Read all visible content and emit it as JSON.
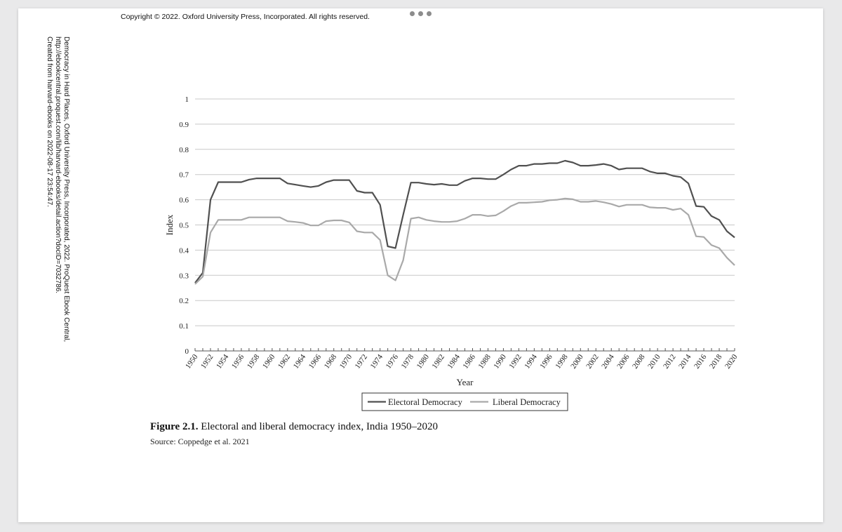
{
  "header": {
    "copyright": "Copyright © 2022. Oxford University Press, Incorporated. All rights reserved."
  },
  "sidenote": {
    "line1": "Democracy in Hard Places, Oxford University Press, Incorporated, 2022. ProQuest Ebook Central,",
    "line2": "http://ebookcentral.proquest.com/lib/harvard-ebooks/detail.action?docID=7032786.",
    "line3": "Created from harvard-ebooks on 2022-08-17 23:54:47."
  },
  "caption": {
    "figure_label": "Figure 2.1.",
    "text": "Electoral and liberal democracy index, India 1950–2020",
    "source": "Source: Coppedge et al. 2021"
  },
  "colors": {
    "electoral": "#505050",
    "liberal": "#a9a9a9",
    "grid": "#c8c8c8"
  },
  "chart_data": {
    "type": "line",
    "xlabel": "Year",
    "ylabel": "Index",
    "ylim": [
      0,
      1
    ],
    "yticks": [
      "0",
      "0.1",
      "0.2",
      "0.3",
      "0.4",
      "0.5",
      "0.6",
      "0.7",
      "0.8",
      "0.9",
      "1"
    ],
    "xtick_labels": [
      "1950",
      "1952",
      "1954",
      "1956",
      "1958",
      "1960",
      "1962",
      "1964",
      "1966",
      "1968",
      "1970",
      "1972",
      "1974",
      "1976",
      "1978",
      "1980",
      "1982",
      "1984",
      "1986",
      "1988",
      "1990",
      "1992",
      "1994",
      "1996",
      "1998",
      "2000",
      "2002",
      "2004",
      "2006",
      "2008",
      "2010",
      "2012",
      "2014",
      "2016",
      "2018",
      "2020"
    ],
    "grid": true,
    "legend_position": "bottom",
    "x": [
      1950,
      1951,
      1952,
      1953,
      1954,
      1955,
      1956,
      1957,
      1958,
      1959,
      1960,
      1961,
      1962,
      1963,
      1964,
      1965,
      1966,
      1967,
      1968,
      1969,
      1970,
      1971,
      1972,
      1973,
      1974,
      1975,
      1976,
      1977,
      1978,
      1979,
      1980,
      1981,
      1982,
      1983,
      1984,
      1985,
      1986,
      1987,
      1988,
      1989,
      1990,
      1991,
      1992,
      1993,
      1994,
      1995,
      1996,
      1997,
      1998,
      1999,
      2000,
      2001,
      2002,
      2003,
      2004,
      2005,
      2006,
      2007,
      2008,
      2009,
      2010,
      2011,
      2012,
      2013,
      2014,
      2015,
      2016,
      2017,
      2018,
      2019,
      2020
    ],
    "series": [
      {
        "name": "Electoral Democracy",
        "values": [
          0.27,
          0.31,
          0.6,
          0.67,
          0.67,
          0.67,
          0.67,
          0.68,
          0.685,
          0.685,
          0.685,
          0.685,
          0.665,
          0.66,
          0.655,
          0.65,
          0.655,
          0.67,
          0.678,
          0.678,
          0.678,
          0.635,
          0.628,
          0.628,
          0.58,
          0.415,
          0.408,
          0.54,
          0.668,
          0.668,
          0.663,
          0.66,
          0.663,
          0.658,
          0.658,
          0.675,
          0.685,
          0.685,
          0.682,
          0.682,
          0.7,
          0.72,
          0.735,
          0.735,
          0.742,
          0.742,
          0.745,
          0.745,
          0.755,
          0.748,
          0.735,
          0.735,
          0.738,
          0.742,
          0.735,
          0.72,
          0.725,
          0.725,
          0.725,
          0.712,
          0.705,
          0.705,
          0.695,
          0.69,
          0.665,
          0.575,
          0.572,
          0.535,
          0.52,
          0.475,
          0.45
        ]
      },
      {
        "name": "Liberal Democracy",
        "values": [
          0.265,
          0.295,
          0.47,
          0.52,
          0.52,
          0.52,
          0.52,
          0.53,
          0.53,
          0.53,
          0.53,
          0.53,
          0.515,
          0.512,
          0.508,
          0.498,
          0.498,
          0.515,
          0.518,
          0.518,
          0.51,
          0.475,
          0.47,
          0.47,
          0.44,
          0.3,
          0.28,
          0.36,
          0.525,
          0.53,
          0.52,
          0.515,
          0.512,
          0.512,
          0.515,
          0.525,
          0.54,
          0.54,
          0.535,
          0.538,
          0.555,
          0.575,
          0.588,
          0.588,
          0.59,
          0.592,
          0.598,
          0.6,
          0.605,
          0.602,
          0.592,
          0.592,
          0.595,
          0.59,
          0.583,
          0.573,
          0.58,
          0.58,
          0.58,
          0.57,
          0.568,
          0.568,
          0.56,
          0.565,
          0.54,
          0.455,
          0.452,
          0.42,
          0.408,
          0.37,
          0.34
        ]
      }
    ]
  }
}
